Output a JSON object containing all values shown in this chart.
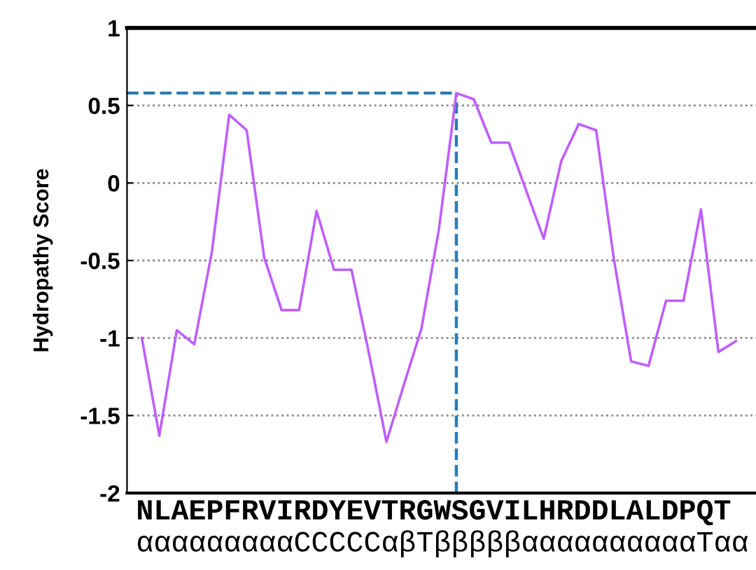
{
  "chart_data": {
    "type": "line",
    "ylabel": "Hydropathy Score",
    "categories": [
      null,
      null,
      null,
      null,
      null,
      null,
      null,
      null,
      null,
      null,
      null,
      null,
      null,
      null,
      null,
      null,
      null,
      null,
      null,
      null,
      null,
      null,
      null,
      null,
      null,
      null,
      null,
      null,
      null,
      null,
      null,
      null,
      null,
      null,
      null
    ],
    "series": [
      {
        "color": "#bf5fff",
        "values": [
          -1.0,
          -1.63,
          -0.95,
          -1.04,
          -0.45,
          0.44,
          0.34,
          -0.48,
          -0.82,
          -0.82,
          -0.18,
          -0.56,
          -0.56,
          -1.1,
          -1.67,
          -1.3,
          -0.94,
          -0.3,
          0.58,
          0.54,
          0.26,
          0.26,
          -0.05,
          -0.36,
          0.14,
          0.38,
          0.34,
          -0.48,
          -1.15,
          -1.18,
          -0.76,
          -0.76,
          -0.17,
          -1.09,
          -1.02
        ]
      }
    ],
    "ylim": [
      -2,
      1
    ],
    "yticks": [
      {
        "value": -2,
        "label": "-2"
      },
      {
        "value": -1.5,
        "label": "-1.5"
      },
      {
        "value": -1,
        "label": "-1"
      },
      {
        "value": -0.5,
        "label": "-0.5"
      },
      {
        "value": 0,
        "label": "0"
      },
      {
        "value": 0.5,
        "label": "0.5"
      },
      {
        "value": 1,
        "label": "1"
      }
    ],
    "grid": "y",
    "marker": "none",
    "line_style": "solid",
    "ref_lines": [
      {
        "axis": "y",
        "value": 0.58,
        "color": "#2e7bb4",
        "line_style": "dashed"
      }
    ],
    "annotations": [
      "NLAEPFRVIRDYEVTRGWSGVILHRDDLALDPQT",
      "αααααααααCCCCCαβTβββββααααααααααTαα"
    ]
  }
}
